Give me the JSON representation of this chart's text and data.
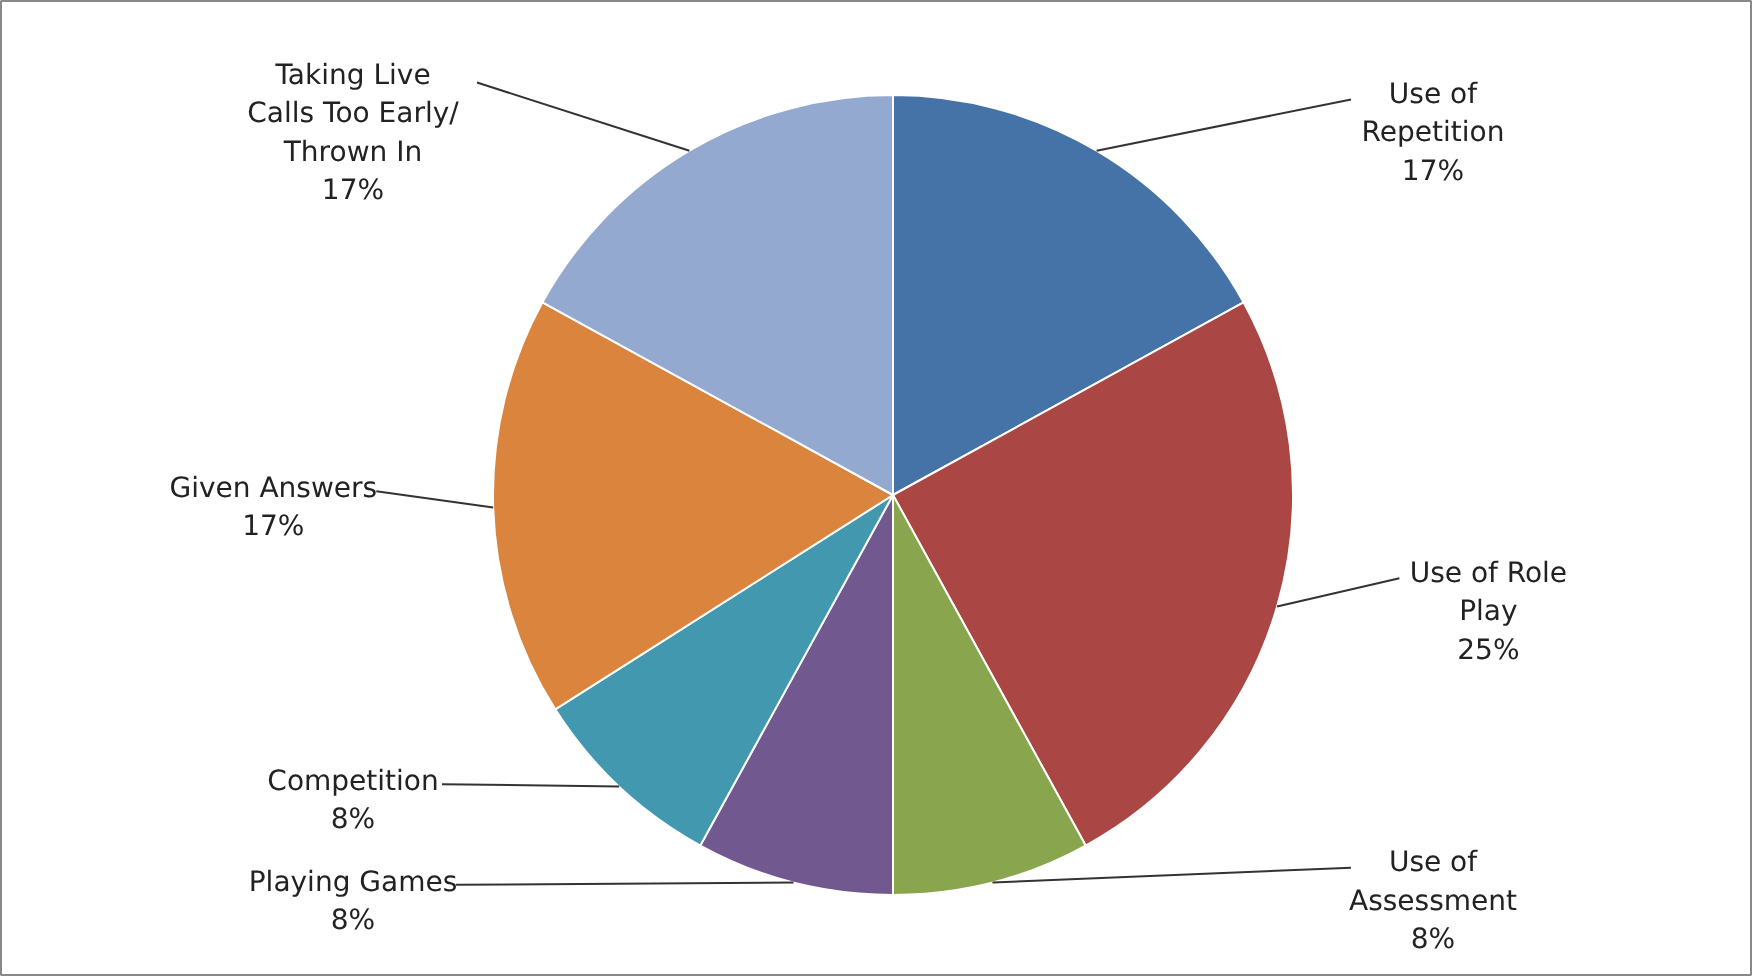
{
  "chart_data": {
    "type": "pie",
    "categories": [
      "Use of Repetition",
      "Use of Role Play",
      "Use of Assessment",
      "Playing Games",
      "Competition",
      "Given Answers",
      "Taking Live Calls Too Early/ Thrown In"
    ],
    "values": [
      17,
      25,
      8,
      8,
      8,
      17,
      17
    ],
    "value_labels": [
      "17%",
      "25%",
      "8%",
      "8%",
      "8%",
      "17%",
      "17%"
    ],
    "colors": [
      "#4572a7",
      "#aa4643",
      "#89a54e",
      "#71588f",
      "#4198af",
      "#db843d",
      "#93a9cf"
    ]
  }
}
